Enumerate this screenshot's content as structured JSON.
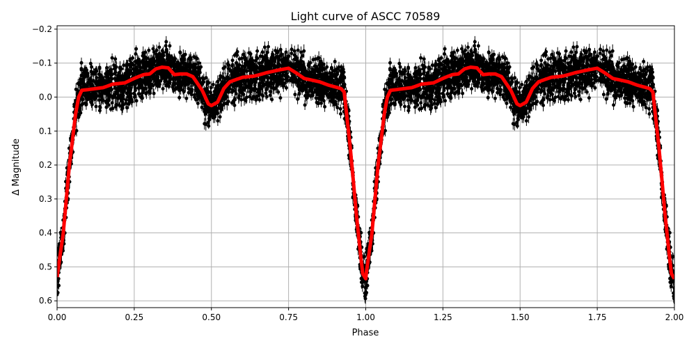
{
  "chart_data": {
    "type": "scatter",
    "title": "Light curve of ASCC 70589",
    "xlabel": "Phase",
    "ylabel": "Δ Magnitude",
    "xlim": [
      0,
      2
    ],
    "ylim": [
      0.62,
      -0.21
    ],
    "y_inverted": true,
    "grid": true,
    "xticks": [
      "0.00",
      "0.25",
      "0.50",
      "0.75",
      "1.00",
      "1.25",
      "1.50",
      "1.75",
      "2.00"
    ],
    "yticks": [
      "−0.2",
      "−0.1",
      "0.0",
      "0.1",
      "0.2",
      "0.3",
      "0.4",
      "0.5",
      "0.6"
    ],
    "colors": {
      "observations": "#000000",
      "model": "#ff0000",
      "grid": "#b0b0b0"
    },
    "series": [
      {
        "kind": "scatter-with-errorbars",
        "color": "#000000"
      },
      {
        "kind": "line",
        "color": "#ff0000",
        "x": [
          0.0,
          0.02,
          0.04,
          0.06,
          0.07,
          0.08,
          0.1,
          0.15,
          0.18,
          0.22,
          0.25,
          0.28,
          0.3,
          0.32,
          0.34,
          0.36,
          0.38,
          0.4,
          0.42,
          0.44,
          0.47,
          0.49,
          0.5,
          0.52,
          0.54,
          0.56,
          0.6,
          0.64,
          0.68,
          0.72,
          0.75,
          0.78,
          0.8,
          0.85,
          0.88,
          0.92,
          0.93,
          0.95,
          0.97,
          0.99,
          1.0
        ],
        "y": [
          0.53,
          0.4,
          0.2,
          0.05,
          0.0,
          -0.02,
          -0.022,
          -0.028,
          -0.038,
          -0.042,
          -0.055,
          -0.066,
          -0.068,
          -0.083,
          -0.088,
          -0.086,
          -0.066,
          -0.068,
          -0.068,
          -0.06,
          -0.02,
          0.02,
          0.025,
          0.015,
          -0.025,
          -0.045,
          -0.058,
          -0.062,
          -0.072,
          -0.08,
          -0.085,
          -0.068,
          -0.055,
          -0.045,
          -0.035,
          -0.025,
          -0.015,
          0.15,
          0.35,
          0.52,
          0.535
        ],
        "repeats_with_period": 1
      }
    ]
  }
}
